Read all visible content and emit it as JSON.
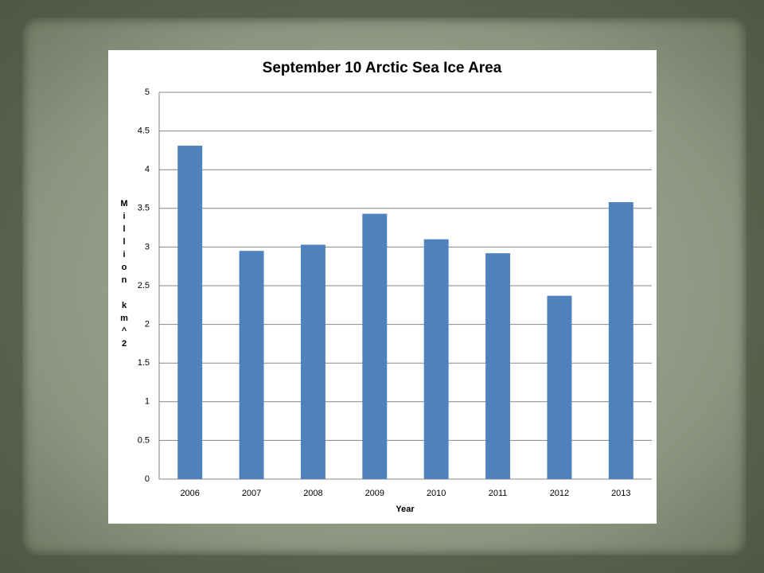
{
  "chart_data": {
    "type": "bar",
    "title": "September 10 Arctic Sea Ice Area",
    "x_label": "Year",
    "y_label": "Million km^2",
    "categories": [
      "2006",
      "2007",
      "2008",
      "2009",
      "2010",
      "2011",
      "2012",
      "2013"
    ],
    "values": [
      4.31,
      2.95,
      3.03,
      3.43,
      3.1,
      2.92,
      2.37,
      3.58
    ],
    "color": "#4f81bd",
    "ylim": [
      0,
      5
    ],
    "yticks": [
      0,
      0.5,
      1,
      1.5,
      2,
      2.5,
      3,
      3.5,
      4,
      4.5,
      5
    ],
    "grid": true
  }
}
